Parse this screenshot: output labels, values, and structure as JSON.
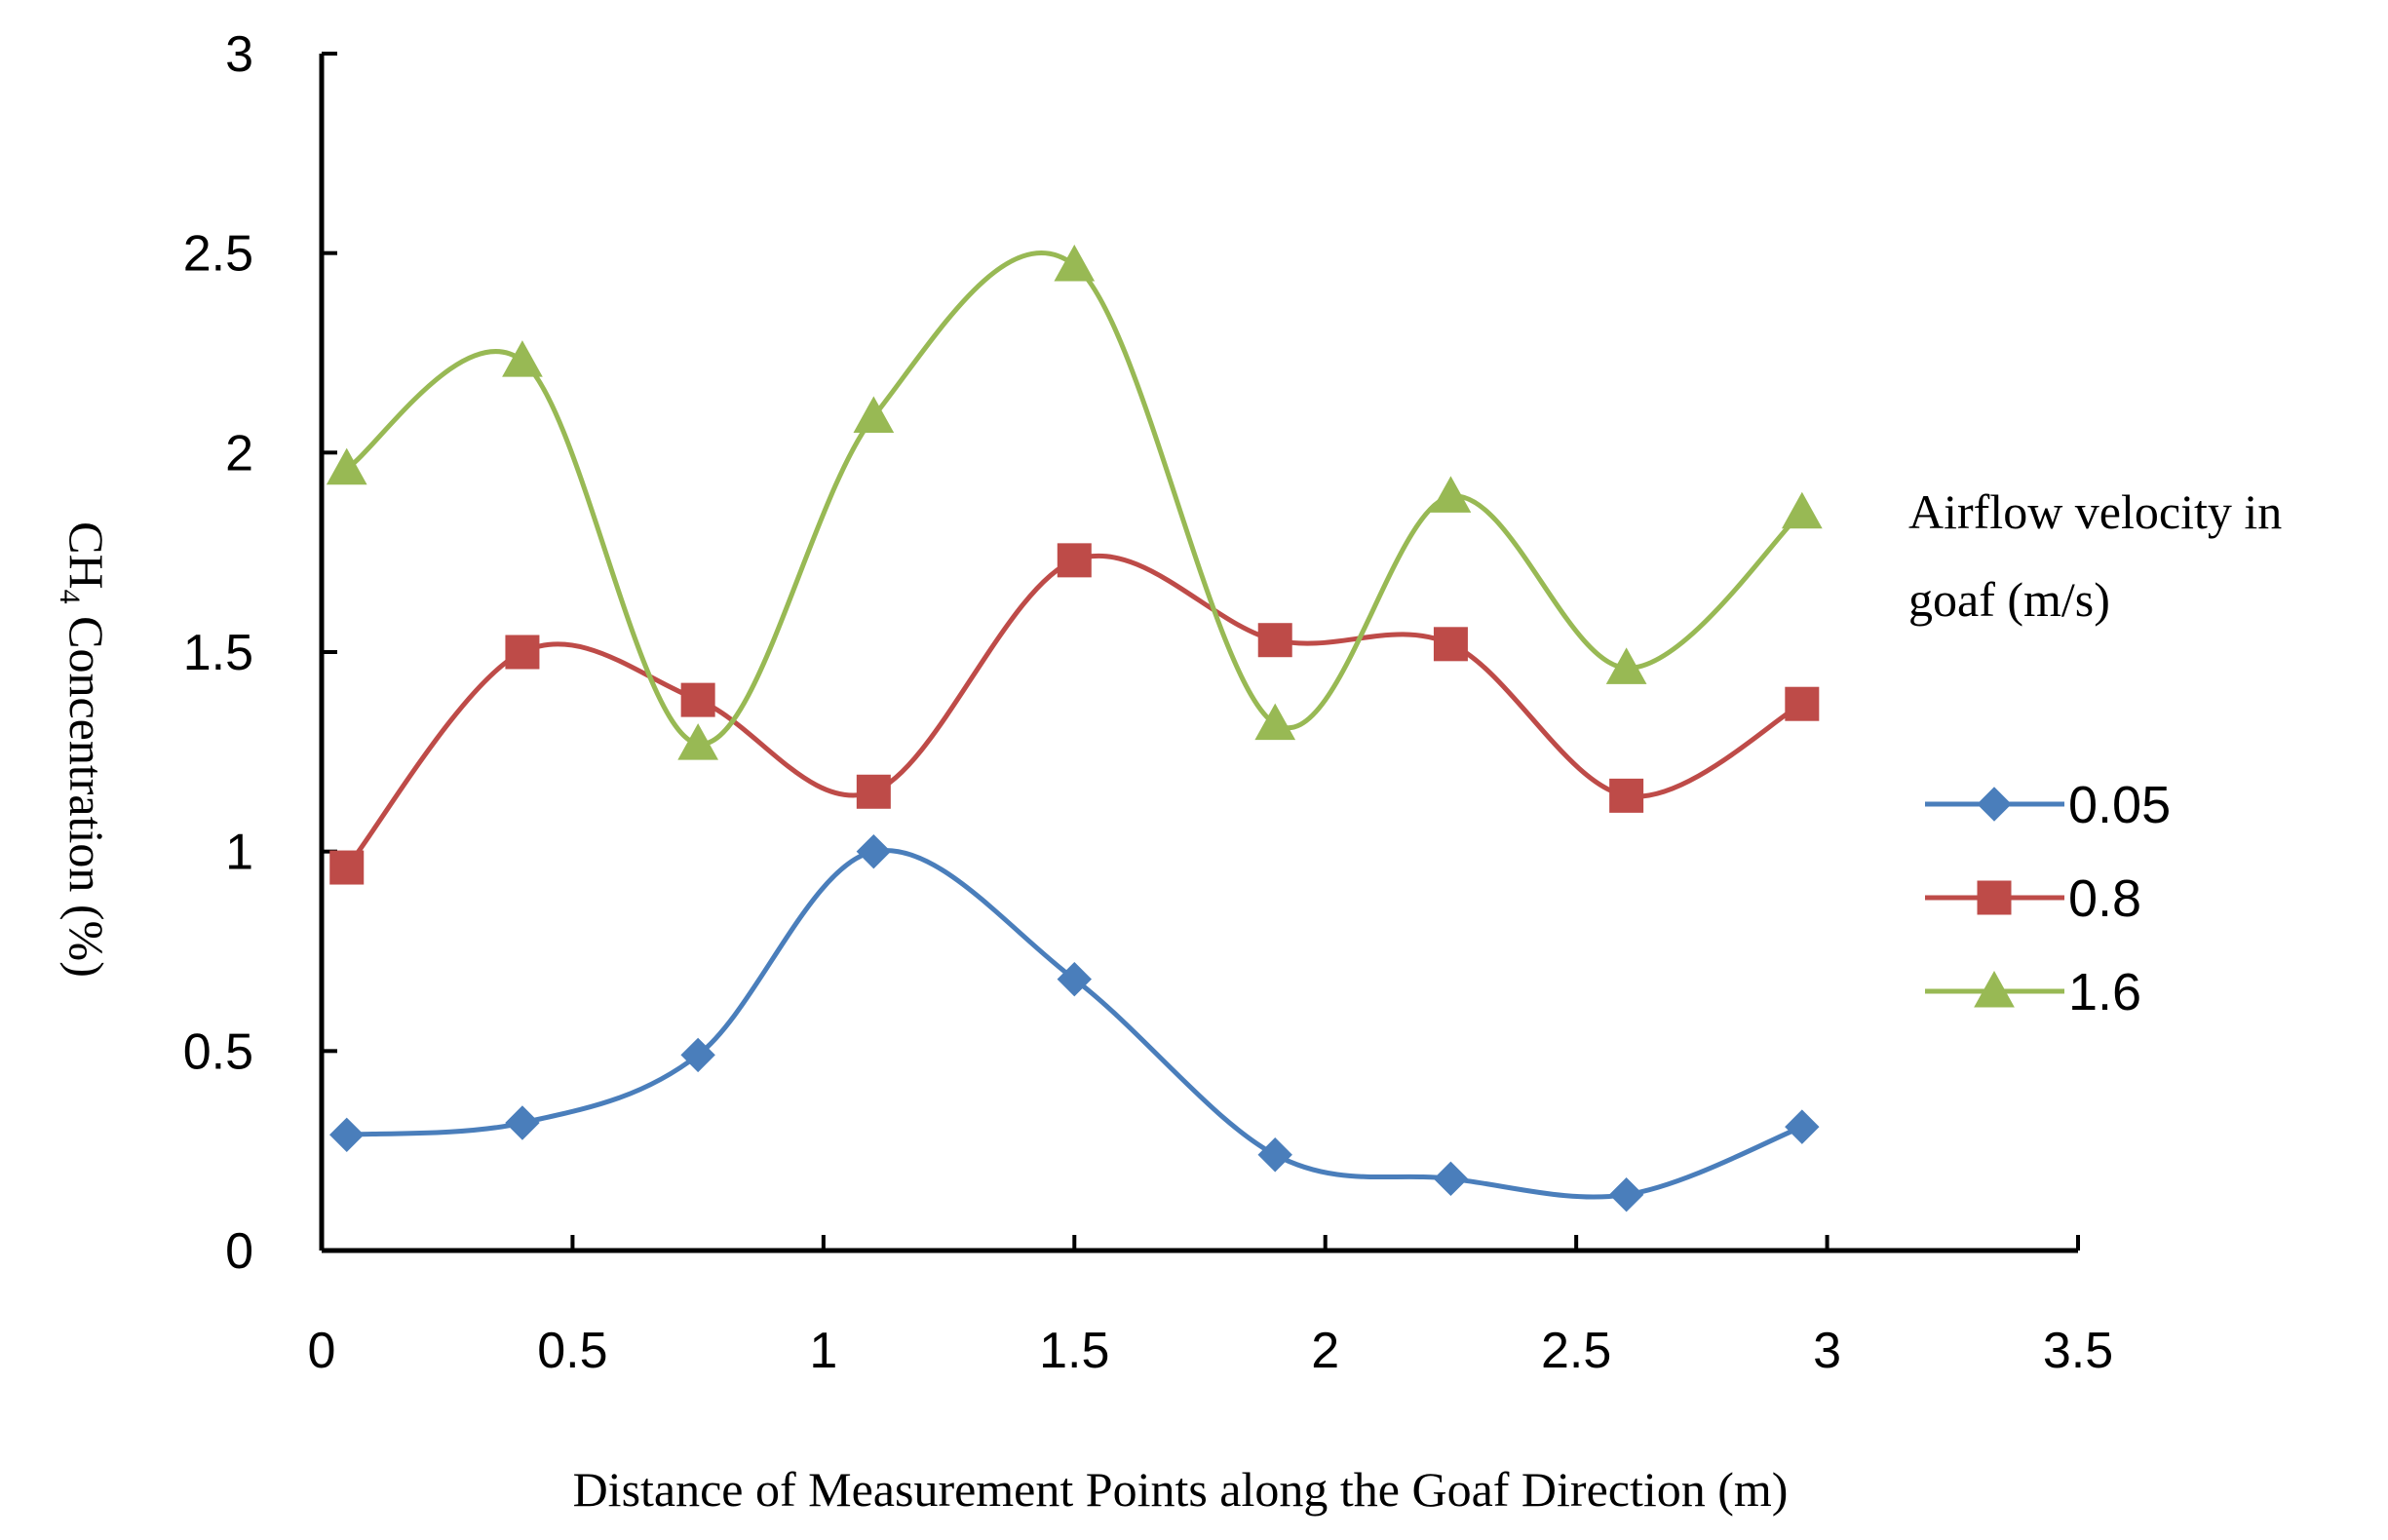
{
  "chart_data": {
    "type": "line",
    "smooth": true,
    "title": "",
    "xlabel": "Distance of Measurement Points along the Goaf Direction (m)",
    "ylabel_prefix": "CH",
    "ylabel_subscript": "4",
    "ylabel_suffix": " Concentration (%)",
    "xlim": [
      0,
      3.5
    ],
    "ylim": [
      0,
      3
    ],
    "xticks": [
      0,
      0.5,
      1,
      1.5,
      2,
      2.5,
      3,
      3.5
    ],
    "xtick_labels": [
      "0",
      "0.5",
      "1",
      "1.5",
      "2",
      "2.5",
      "3",
      "3.5"
    ],
    "yticks": [
      0,
      0.5,
      1,
      1.5,
      2,
      2.5,
      3
    ],
    "ytick_labels": [
      "0",
      "0.5",
      "1",
      "1.5",
      "2",
      "2.5",
      "3"
    ],
    "grid": false,
    "legend_title_lines": [
      "Airflow velocity in",
      "goaf (m/s)"
    ],
    "legend_position": "right",
    "x": [
      0.05,
      0.4,
      0.75,
      1.1,
      1.5,
      1.9,
      2.25,
      2.6,
      2.95
    ],
    "series": [
      {
        "name": "0.05",
        "color": "#4a7ebb",
        "marker": "diamond",
        "values": [
          0.29,
          0.32,
          0.49,
          1.0,
          0.68,
          0.24,
          0.18,
          0.14,
          0.31
        ]
      },
      {
        "name": "0.8",
        "color": "#be4b48",
        "marker": "square",
        "values": [
          0.96,
          1.5,
          1.38,
          1.15,
          1.73,
          1.53,
          1.52,
          1.14,
          1.37
        ]
      },
      {
        "name": "1.6",
        "color": "#98b954",
        "marker": "triangle",
        "values": [
          1.96,
          2.23,
          1.27,
          2.09,
          2.47,
          1.32,
          1.89,
          1.46,
          1.85
        ]
      }
    ]
  }
}
